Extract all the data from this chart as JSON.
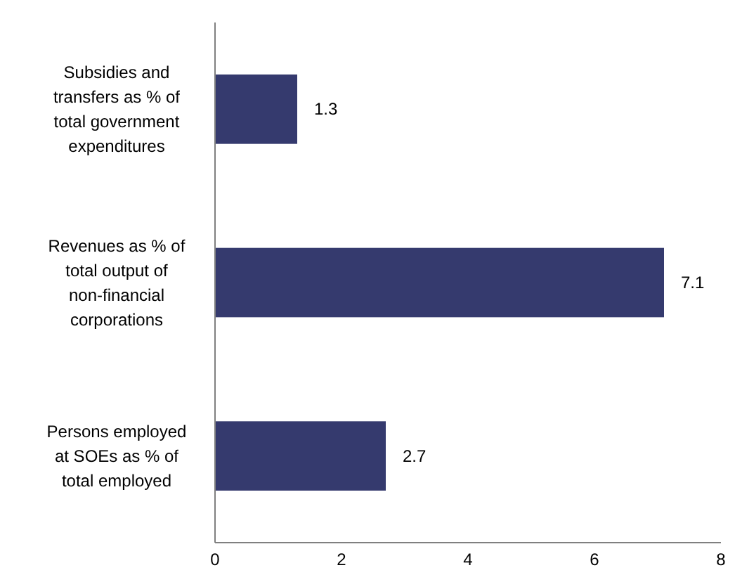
{
  "chart_data": {
    "type": "bar",
    "orientation": "horizontal",
    "categories": [
      "Subsidies and transfers as % of total government expenditures",
      "Revenues as % of total output of non-financial corporations",
      "Persons employed at SOEs as % of total employed"
    ],
    "values": [
      1.3,
      7.1,
      2.7
    ],
    "color": "#353a6e",
    "xlim": [
      0,
      8
    ],
    "xticks": [
      0,
      2,
      4,
      6,
      8
    ],
    "data_labels": true
  }
}
